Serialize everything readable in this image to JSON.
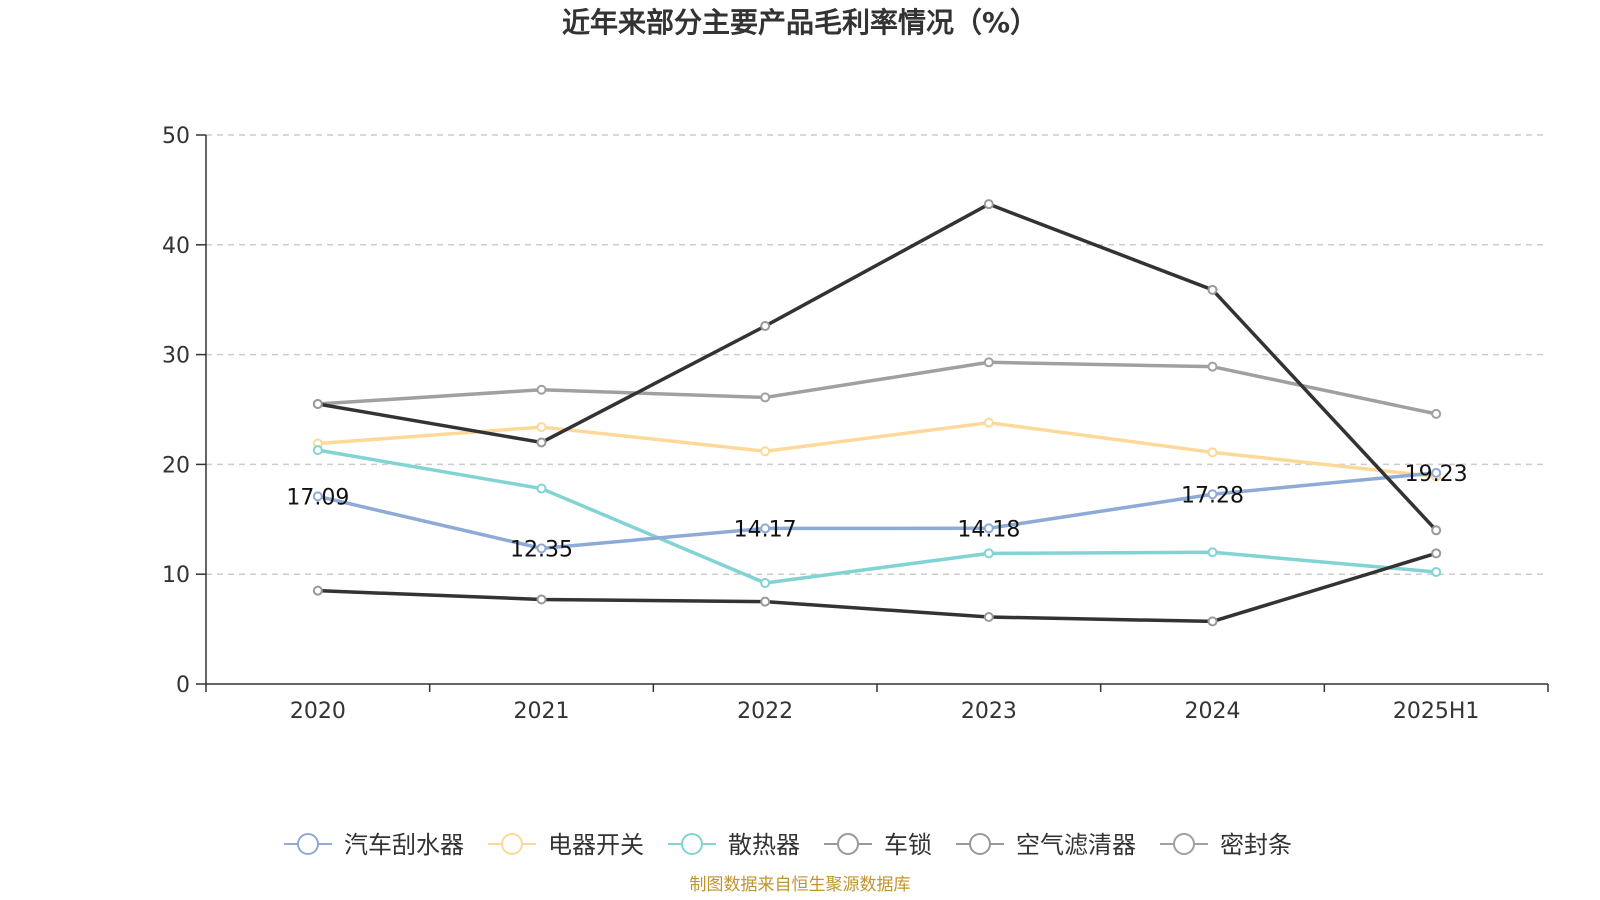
{
  "chart_data": {
    "type": "line",
    "title": "近年来部分主要产品毛利率情况（%）",
    "categories": [
      "2020",
      "2021",
      "2022",
      "2023",
      "2024",
      "2025H1"
    ],
    "ylim": [
      0,
      50
    ],
    "yticks": [
      0,
      10,
      20,
      30,
      40,
      50
    ],
    "grid": true,
    "legend_position": "bottom-center",
    "series": [
      {
        "name": "汽车刮水器",
        "color": "#8eaad6",
        "values": [
          17.09,
          12.35,
          14.17,
          14.18,
          17.28,
          19.23
        ],
        "labels": [
          "17.09",
          "12.35",
          "14.17",
          "14.18",
          "17.28",
          "19.23"
        ]
      },
      {
        "name": "电器开关",
        "color": "#fdd999",
        "values": [
          21.9,
          23.4,
          21.2,
          23.8,
          21.1,
          18.9
        ]
      },
      {
        "name": "散热器",
        "color": "#82d3d3",
        "values": [
          21.3,
          17.8,
          9.2,
          11.9,
          12.0,
          10.2
        ]
      },
      {
        "name": "车锁",
        "color": "#333333",
        "values": [
          8.5,
          7.7,
          7.5,
          6.1,
          5.7,
          11.9
        ]
      },
      {
        "name": "空气滤清器",
        "color": "#333333",
        "values": [
          25.5,
          22.0,
          32.6,
          43.7,
          35.9,
          14.0
        ]
      },
      {
        "name": "密封条",
        "color": "#a0a0a0",
        "values": [
          25.5,
          26.8,
          26.1,
          29.3,
          28.9,
          24.6
        ]
      }
    ],
    "source": "制图数据来自恒生聚源数据库"
  }
}
